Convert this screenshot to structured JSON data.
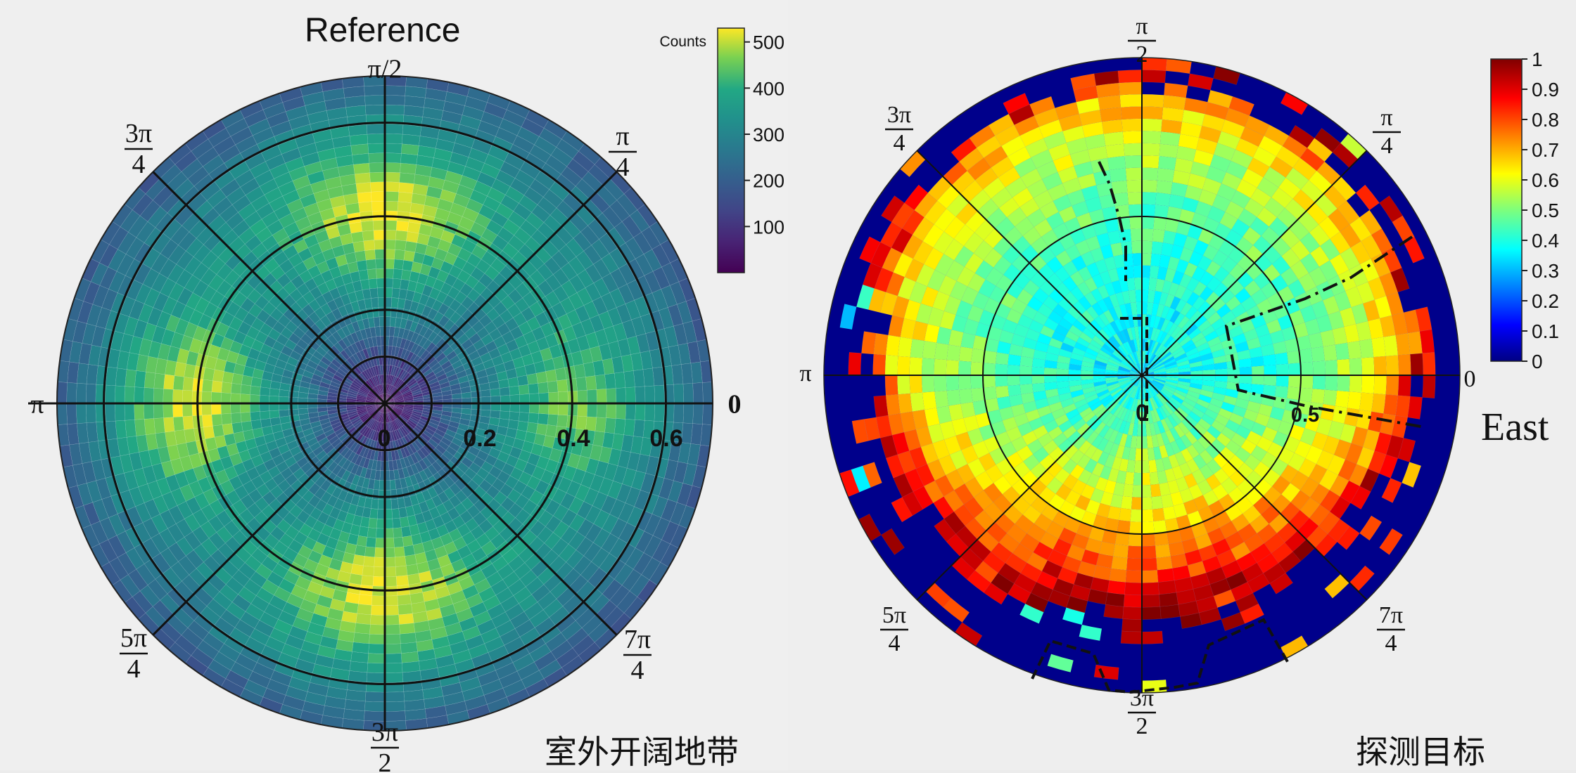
{
  "panels": {
    "left": {
      "title": "Reference",
      "caption": "室外开阔地带",
      "colorbar": {
        "label": "Counts",
        "ticks": [
          "100",
          "200",
          "300",
          "400",
          "500"
        ],
        "range": [
          0,
          530
        ],
        "colormap": "viridis"
      },
      "angle_labels": [
        {
          "key": "0",
          "text": "0"
        },
        {
          "key": "q1",
          "num": "π",
          "den": "4"
        },
        {
          "key": "half",
          "text": "π/2"
        },
        {
          "key": "q3",
          "num": "3π",
          "den": "4"
        },
        {
          "key": "pi",
          "text": "π"
        },
        {
          "key": "q5",
          "num": "5π",
          "den": "4"
        },
        {
          "key": "three_half",
          "num": "3π",
          "den": "2"
        },
        {
          "key": "q7",
          "num": "7π",
          "den": "4"
        }
      ],
      "radial_ticks": [
        "0",
        "0.2",
        "0.4",
        "0.6"
      ]
    },
    "right": {
      "caption": "探测目标",
      "side_label": "East",
      "colorbar": {
        "label": "",
        "ticks": [
          "0",
          "0.1",
          "0.2",
          "0.3",
          "0.4",
          "0.5",
          "0.6",
          "0.7",
          "0.8",
          "0.9",
          "1"
        ],
        "range": [
          0,
          1
        ],
        "colormap": "jet"
      },
      "angle_labels": [
        {
          "key": "0",
          "text": "0"
        },
        {
          "key": "q1",
          "num": "π",
          "den": "4"
        },
        {
          "key": "half",
          "num": "π",
          "den": "2"
        },
        {
          "key": "q3",
          "num": "3π",
          "den": "4"
        },
        {
          "key": "pi",
          "text": "π"
        },
        {
          "key": "q5",
          "num": "5π",
          "den": "4"
        },
        {
          "key": "three_half",
          "num": "3π",
          "den": "2"
        },
        {
          "key": "q7",
          "num": "7π",
          "den": "4"
        }
      ],
      "radial_ticks": [
        "0",
        "0.5"
      ]
    }
  },
  "chart_data": [
    {
      "type": "heatmap",
      "projection": "polar",
      "title": "Reference",
      "value_label": "Counts",
      "r_range": [
        0,
        0.7
      ],
      "theta_range": [
        0,
        6.2832
      ],
      "color_range": [
        0,
        530
      ],
      "grid": true,
      "r_gridlines": [
        0.2,
        0.4,
        0.6
      ],
      "theta_gridlines_deg": [
        0,
        45,
        90,
        135,
        180,
        225,
        270,
        315
      ],
      "description_of_pattern": {
        "center_value": 20,
        "peak_value": 520,
        "peak_directions": [
          "π/2",
          "π",
          "3π/2"
        ],
        "peak_radius": 0.45,
        "outer_value": 240
      }
    },
    {
      "type": "heatmap",
      "projection": "polar",
      "value_label": "",
      "r_range": [
        0,
        1.0
      ],
      "color_range": [
        0,
        1
      ],
      "grid": true,
      "r_gridlines": [
        0.5
      ],
      "theta_gridlines_deg": [
        0,
        45,
        90,
        135,
        180,
        225,
        270,
        315
      ],
      "description_of_pattern": {
        "center_value": 0.4,
        "mid_ring_value": 0.55,
        "edge_value": 0.9,
        "outside_value": 0.0,
        "high_region": "3π/2 side (lower half)"
      }
    }
  ]
}
